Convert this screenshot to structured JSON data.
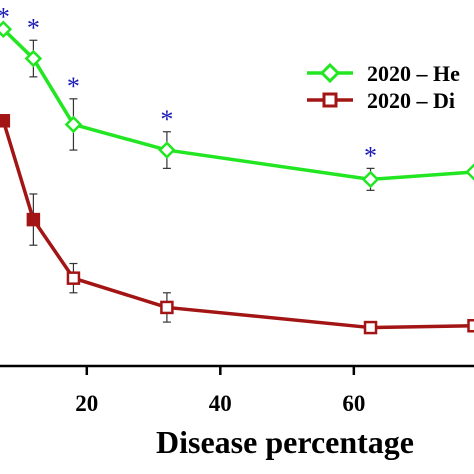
{
  "chart_data": {
    "type": "line",
    "xlabel": "Disease percentage",
    "ylabel": "",
    "xlim": [
      7,
      78
    ],
    "ylim": [
      0,
      1
    ],
    "x_ticks": [
      20,
      40,
      60
    ],
    "grid": false,
    "legend_position": "top-right",
    "series": [
      {
        "name": "2020 – He",
        "color": "#22e622",
        "marker": "diamond",
        "points": [
          {
            "x": 7.5,
            "y": 0.92,
            "err": null,
            "significant": true
          },
          {
            "x": 12,
            "y": 0.84,
            "err": 0.05,
            "significant": true
          },
          {
            "x": 18,
            "y": 0.66,
            "err": 0.07,
            "significant": true
          },
          {
            "x": 32,
            "y": 0.59,
            "err": 0.05,
            "significant": true
          },
          {
            "x": 62.5,
            "y": 0.51,
            "err": 0.03,
            "significant": true
          },
          {
            "x": 78,
            "y": 0.53,
            "err": null,
            "significant": false
          }
        ]
      },
      {
        "name": "2020 – Di",
        "color": "#a31515",
        "marker": "square",
        "points": [
          {
            "x": 7.5,
            "y": 0.67,
            "err": null,
            "significant": false
          },
          {
            "x": 12,
            "y": 0.4,
            "err": 0.07,
            "significant": false
          },
          {
            "x": 18,
            "y": 0.24,
            "err": 0.04,
            "significant": false
          },
          {
            "x": 32,
            "y": 0.16,
            "err": 0.04,
            "significant": false
          },
          {
            "x": 62.5,
            "y": 0.105,
            "err": 0.015,
            "significant": false
          },
          {
            "x": 78,
            "y": 0.11,
            "err": null,
            "significant": false
          }
        ]
      }
    ],
    "annotations": {
      "symbol": "*",
      "color": "#1a1ab8"
    }
  }
}
